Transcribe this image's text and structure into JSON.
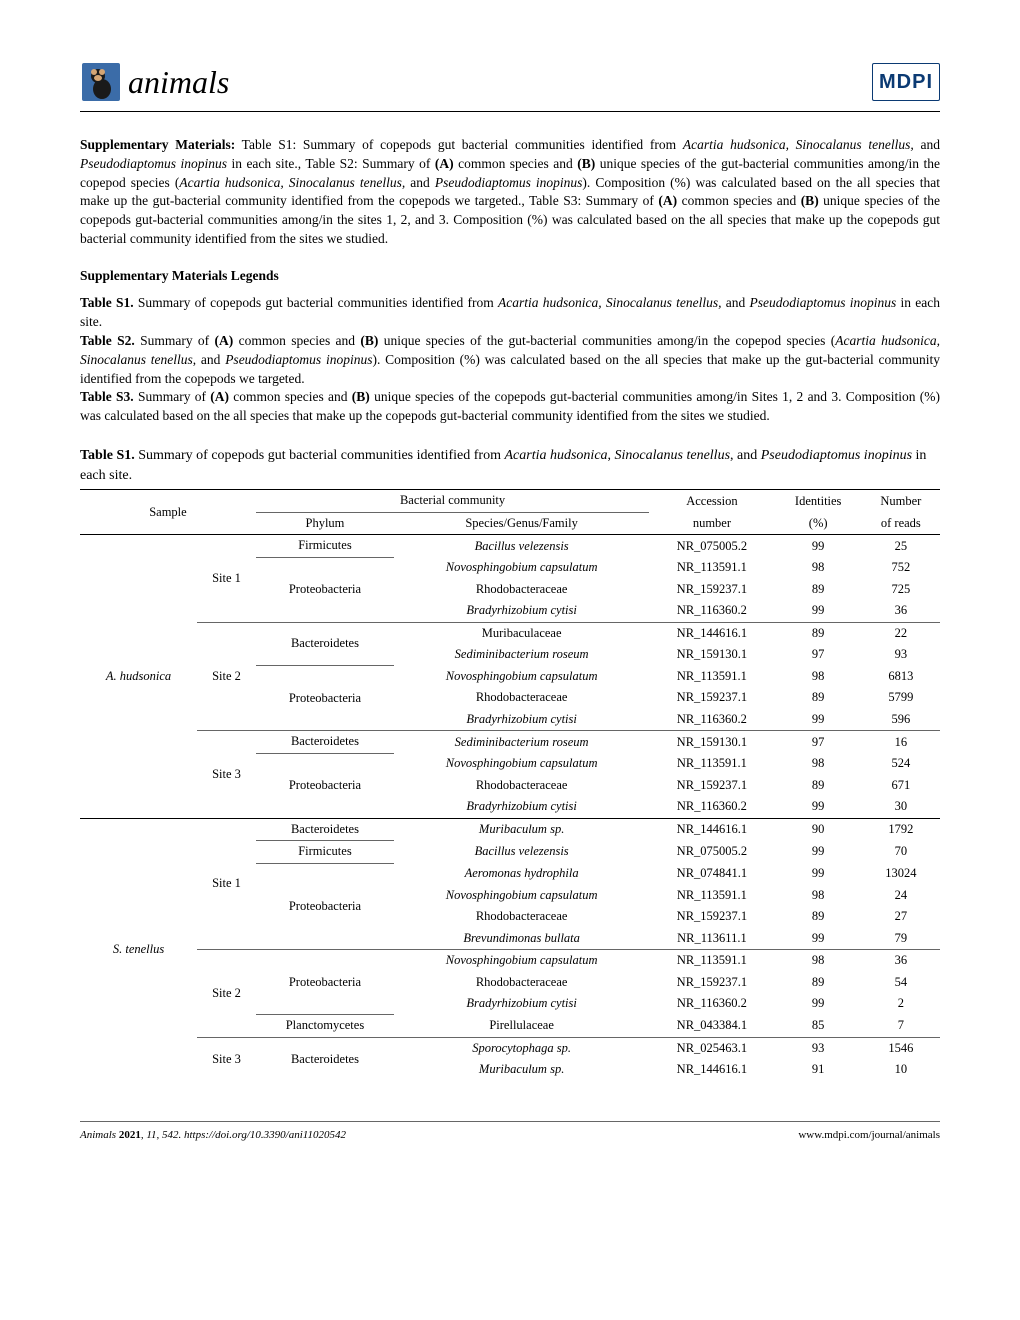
{
  "header": {
    "journal_name": "animals",
    "publisher": "MDPI"
  },
  "supp_block": {
    "lead": "Supplementary Materials:",
    "text": " Table S1: Summary of copepods gut bacterial communities identified from Acartia hudsonica, Sinocalanus tenellus, and Pseudodiaptomus inopinus in each site., Table S2: Summary of (A) common species and (B) unique species of the gut-bacterial communities among/in the copepod species (Acartia hudsonica, Sinocalanus tenellus, and Pseudodiaptomus inopinus). Composition (%) was calculated based on the all species that make up the gut-bacterial community identified from the copepods we targeted., Table S3: Summary of (A) common species and (B) unique species of the copepods gut-bacterial communities among/in the sites 1, 2, and 3. Composition (%) was calculated based on the all species that make up the copepods gut bacterial community identified from the sites we studied."
  },
  "legends": {
    "heading": "Supplementary Materials Legends",
    "s1_lead": "Table S1.",
    "s1_text": " Summary of copepods gut bacterial communities identified from Acartia hudsonica, Sinocalanus tenellus, and Pseudodiaptomus inopinus in each site.",
    "s2_lead": "Table S2.",
    "s2_text": " Summary of (A) common species and (B) unique species of the gut-bacterial communities among/in the copepod species (Acartia hudsonica, Sinocalanus tenellus, and Pseudodiaptomus inopinus). Composition (%) was calculated based on the all species that make up the gut-bacterial community identified from the copepods we targeted.",
    "s3_lead": "Table S3.",
    "s3_text": " Summary of (A) common species and (B) unique species of the copepods gut-bacterial communities among/in Sites 1, 2 and 3. Composition (%) was calculated based on the all species that make up the copepods gut-bacterial community identified from the sites we studied."
  },
  "table_caption": {
    "lead": "Table S1.",
    "text": " Summary of copepods gut bacterial communities identified from Acartia hudsonica, Sinocalanus tenellus, and Pseudodiaptomus inopinus in each site."
  },
  "table": {
    "header_top": {
      "sample": "Sample",
      "bacterial": "Bacterial community",
      "accession": "Accession",
      "identities": "Identities",
      "number": "Number"
    },
    "header_bot": {
      "phylum": "Phylum",
      "species": "Species/Genus/Family",
      "accession": "number",
      "identities": "(%)",
      "number": "of reads"
    },
    "rows": [
      {
        "sample": "A. hudsonica",
        "site": "Site 1",
        "phylum": "Firmicutes",
        "species": "Bacillus velezensis",
        "sp_it": true,
        "acc": "NR_075005.2",
        "id": "99",
        "reads": "25"
      },
      {
        "sample": "",
        "site": "",
        "phylum": "Proteobacteria",
        "species": "Novosphingobium capsulatum",
        "sp_it": true,
        "acc": "NR_113591.1",
        "id": "98",
        "reads": "752"
      },
      {
        "sample": "",
        "site": "",
        "phylum": "",
        "species": "Rhodobacteraceae",
        "sp_it": false,
        "acc": "NR_159237.1",
        "id": "89",
        "reads": "725"
      },
      {
        "sample": "",
        "site": "",
        "phylum": "",
        "species": "Bradyrhizobium cytisi",
        "sp_it": true,
        "acc": "NR_116360.2",
        "id": "99",
        "reads": "36"
      },
      {
        "sample": "",
        "site": "Site 2",
        "phylum": "Bacteroidetes",
        "species": "Muribaculaceae",
        "sp_it": false,
        "acc": "NR_144616.1",
        "id": "89",
        "reads": "22"
      },
      {
        "sample": "",
        "site": "",
        "phylum": "",
        "species": "Sediminibacterium roseum",
        "sp_it": true,
        "acc": "NR_159130.1",
        "id": "97",
        "reads": "93"
      },
      {
        "sample": "",
        "site": "",
        "phylum": "Proteobacteria",
        "species": "Novosphingobium capsulatum",
        "sp_it": true,
        "acc": "NR_113591.1",
        "id": "98",
        "reads": "6813"
      },
      {
        "sample": "",
        "site": "",
        "phylum": "",
        "species": "Rhodobacteraceae",
        "sp_it": false,
        "acc": "NR_159237.1",
        "id": "89",
        "reads": "5799"
      },
      {
        "sample": "",
        "site": "",
        "phylum": "",
        "species": "Bradyrhizobium cytisi",
        "sp_it": true,
        "acc": "NR_116360.2",
        "id": "99",
        "reads": "596"
      },
      {
        "sample": "",
        "site": "Site 3",
        "phylum": "Bacteroidetes",
        "species": "Sediminibacterium roseum",
        "sp_it": true,
        "acc": "NR_159130.1",
        "id": "97",
        "reads": "16"
      },
      {
        "sample": "",
        "site": "",
        "phylum": "Proteobacteria",
        "species": "Novosphingobium capsulatum",
        "sp_it": true,
        "acc": "NR_113591.1",
        "id": "98",
        "reads": "524"
      },
      {
        "sample": "",
        "site": "",
        "phylum": "",
        "species": "Rhodobacteraceae",
        "sp_it": false,
        "acc": "NR_159237.1",
        "id": "89",
        "reads": "671"
      },
      {
        "sample": "",
        "site": "",
        "phylum": "",
        "species": "Bradyrhizobium cytisi",
        "sp_it": true,
        "acc": "NR_116360.2",
        "id": "99",
        "reads": "30"
      },
      {
        "sample": "S. tenellus",
        "site": "Site 1",
        "phylum": "Bacteroidetes",
        "species": "Muribaculum sp.",
        "sp_it": true,
        "acc": "NR_144616.1",
        "id": "90",
        "reads": "1792"
      },
      {
        "sample": "",
        "site": "",
        "phylum": "Firmicutes",
        "species": "Bacillus velezensis",
        "sp_it": true,
        "acc": "NR_075005.2",
        "id": "99",
        "reads": "70"
      },
      {
        "sample": "",
        "site": "",
        "phylum": "Proteobacteria",
        "species": "Aeromonas hydrophila",
        "sp_it": true,
        "acc": "NR_074841.1",
        "id": "99",
        "reads": "13024"
      },
      {
        "sample": "",
        "site": "",
        "phylum": "",
        "species": "Novosphingobium capsulatum",
        "sp_it": true,
        "acc": "NR_113591.1",
        "id": "98",
        "reads": "24"
      },
      {
        "sample": "",
        "site": "",
        "phylum": "",
        "species": "Rhodobacteraceae",
        "sp_it": false,
        "acc": "NR_159237.1",
        "id": "89",
        "reads": "27"
      },
      {
        "sample": "",
        "site": "",
        "phylum": "",
        "species": "Brevundimonas bullata",
        "sp_it": true,
        "acc": "NR_113611.1",
        "id": "99",
        "reads": "79"
      },
      {
        "sample": "",
        "site": "Site 2",
        "phylum": "Proteobacteria",
        "species": "Novosphingobium capsulatum",
        "sp_it": true,
        "acc": "NR_113591.1",
        "id": "98",
        "reads": "36"
      },
      {
        "sample": "",
        "site": "",
        "phylum": "",
        "species": "Rhodobacteraceae",
        "sp_it": false,
        "acc": "NR_159237.1",
        "id": "89",
        "reads": "54"
      },
      {
        "sample": "",
        "site": "",
        "phylum": "",
        "species": "Bradyrhizobium cytisi",
        "sp_it": true,
        "acc": "NR_116360.2",
        "id": "99",
        "reads": "2"
      },
      {
        "sample": "",
        "site": "",
        "phylum": "Planctomycetes",
        "species": "Pirellulaceae",
        "sp_it": false,
        "acc": "NR_043384.1",
        "id": "85",
        "reads": "7"
      },
      {
        "sample": "",
        "site": "Site 3",
        "phylum": "Bacteroidetes",
        "species": "Sporocytophaga sp.",
        "sp_it": true,
        "acc": "NR_025463.1",
        "id": "93",
        "reads": "1546"
      },
      {
        "sample": "",
        "site": "",
        "phylum": "",
        "species": "Muribaculum sp.",
        "sp_it": true,
        "acc": "NR_144616.1",
        "id": "91",
        "reads": "10"
      }
    ]
  },
  "footer": {
    "left_prefix": "Animals ",
    "left_bold": "2021",
    "left_rest": ", 11, 542. https://doi.org/10.3390/ani11020542",
    "right": "www.mdpi.com/journal/animals"
  }
}
